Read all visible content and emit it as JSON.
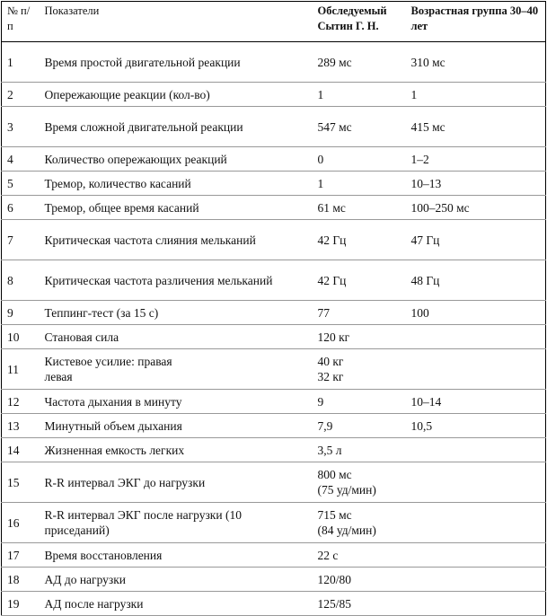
{
  "table": {
    "header": [
      "№ п/п",
      "Показатели",
      "Обследуемый Сытин Г. Н.",
      "Возрастная группа 30–40 лет"
    ],
    "rows": [
      [
        "1",
        "Время простой двигательной реакции",
        "289 мс",
        "310 мс"
      ],
      [
        "2",
        "Опережающие реакции (кол-во)",
        "1",
        "1"
      ],
      [
        "3",
        "Время сложной двигательной реакции",
        "547 мс",
        "415 мс"
      ],
      [
        "4",
        "Количество опережающих реакций",
        "0",
        "1–2"
      ],
      [
        "5",
        "Тремор, количество касаний",
        "1",
        "10–13"
      ],
      [
        "6",
        "Тремор, общее время касаний",
        "61 мс",
        "100–250 мс"
      ],
      [
        "7",
        "Критическая частота слияния мельканий",
        "42 Гц",
        "47 Гц"
      ],
      [
        "8",
        "Критическая частота различения мельканий",
        "42 Гц",
        "48 Гц"
      ],
      [
        "9",
        "Теппинг-тест (за 15 с)",
        "77",
        "100"
      ],
      [
        "10",
        "Становая сила",
        "120 кг",
        ""
      ],
      [
        "11",
        [
          "Кистевое усилие: правая",
          "левая"
        ],
        [
          "40 кг",
          "32 кг"
        ],
        ""
      ],
      [
        "12",
        "Частота дыхания в минуту",
        "9",
        "10–14"
      ],
      [
        "13",
        "Минутный объем дыхания",
        "7,9",
        "10,5"
      ],
      [
        "14",
        "Жизненная емкость легких",
        "3,5 л",
        ""
      ],
      [
        "15",
        "R-R интервал ЭКГ до нагрузки",
        [
          "800 мс",
          "(75 уд/мин)"
        ],
        ""
      ],
      [
        "16",
        "R-R интервал ЭКГ после нагрузки (10 приседаний)",
        [
          "715 мс",
          "(84 уд/мин)"
        ],
        ""
      ],
      [
        "17",
        "Время восстановления",
        "22 с",
        ""
      ],
      [
        "18",
        "АД до нагрузки",
        "120/80",
        ""
      ],
      [
        "19",
        "АД после нагрузки",
        "125/85",
        ""
      ]
    ]
  }
}
